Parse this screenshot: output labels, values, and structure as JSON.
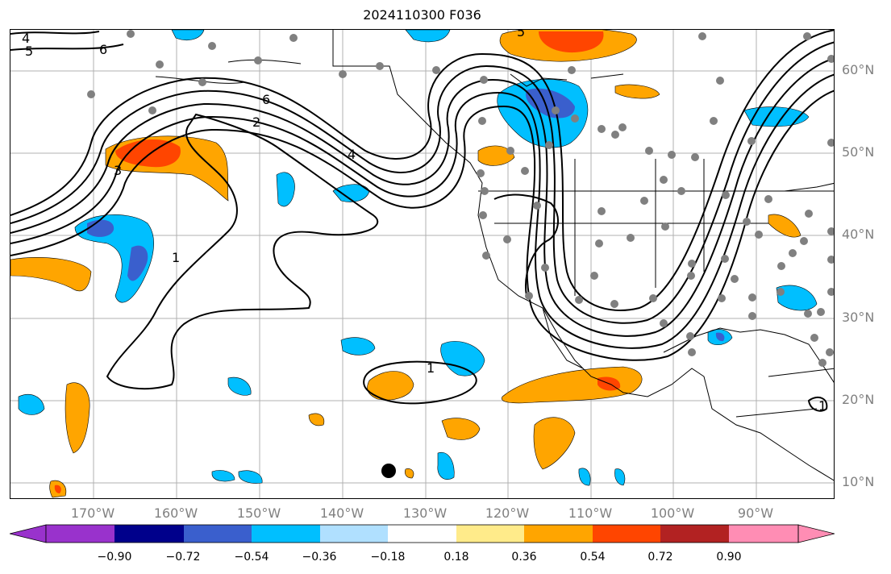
{
  "title": "2024110300 F036",
  "lat_labels": [
    "60°N",
    "50°N",
    "40°N",
    "30°N",
    "20°N",
    "10°N"
  ],
  "lon_labels": [
    "170°W",
    "160°W",
    "150°W",
    "140°W",
    "130°W",
    "120°W",
    "110°W",
    "100°W",
    "90°W"
  ],
  "contour_labels": [
    "4",
    "5",
    "6",
    "6",
    "2",
    "4",
    "3",
    "1",
    "1",
    "1",
    "5"
  ],
  "colorbar": {
    "ticks": [
      "−0.90",
      "−0.72",
      "−0.54",
      "−0.36",
      "−0.18",
      "0.18",
      "0.36",
      "0.54",
      "0.72",
      "0.90"
    ],
    "colors": [
      "#9932cc",
      "#00008b",
      "#3a5fcd",
      "#00bfff",
      "#b0e0ff",
      "#ffffff",
      "#ffeb8a",
      "#ffa500",
      "#ff4500",
      "#b22222",
      "#ff8db4"
    ]
  },
  "legend_colors": {
    "positive_mid": "#ffa500",
    "positive_high": "#ff4500",
    "negative_mid": "#00bfff",
    "negative_high": "#3a5fcd",
    "station": "#808080"
  }
}
